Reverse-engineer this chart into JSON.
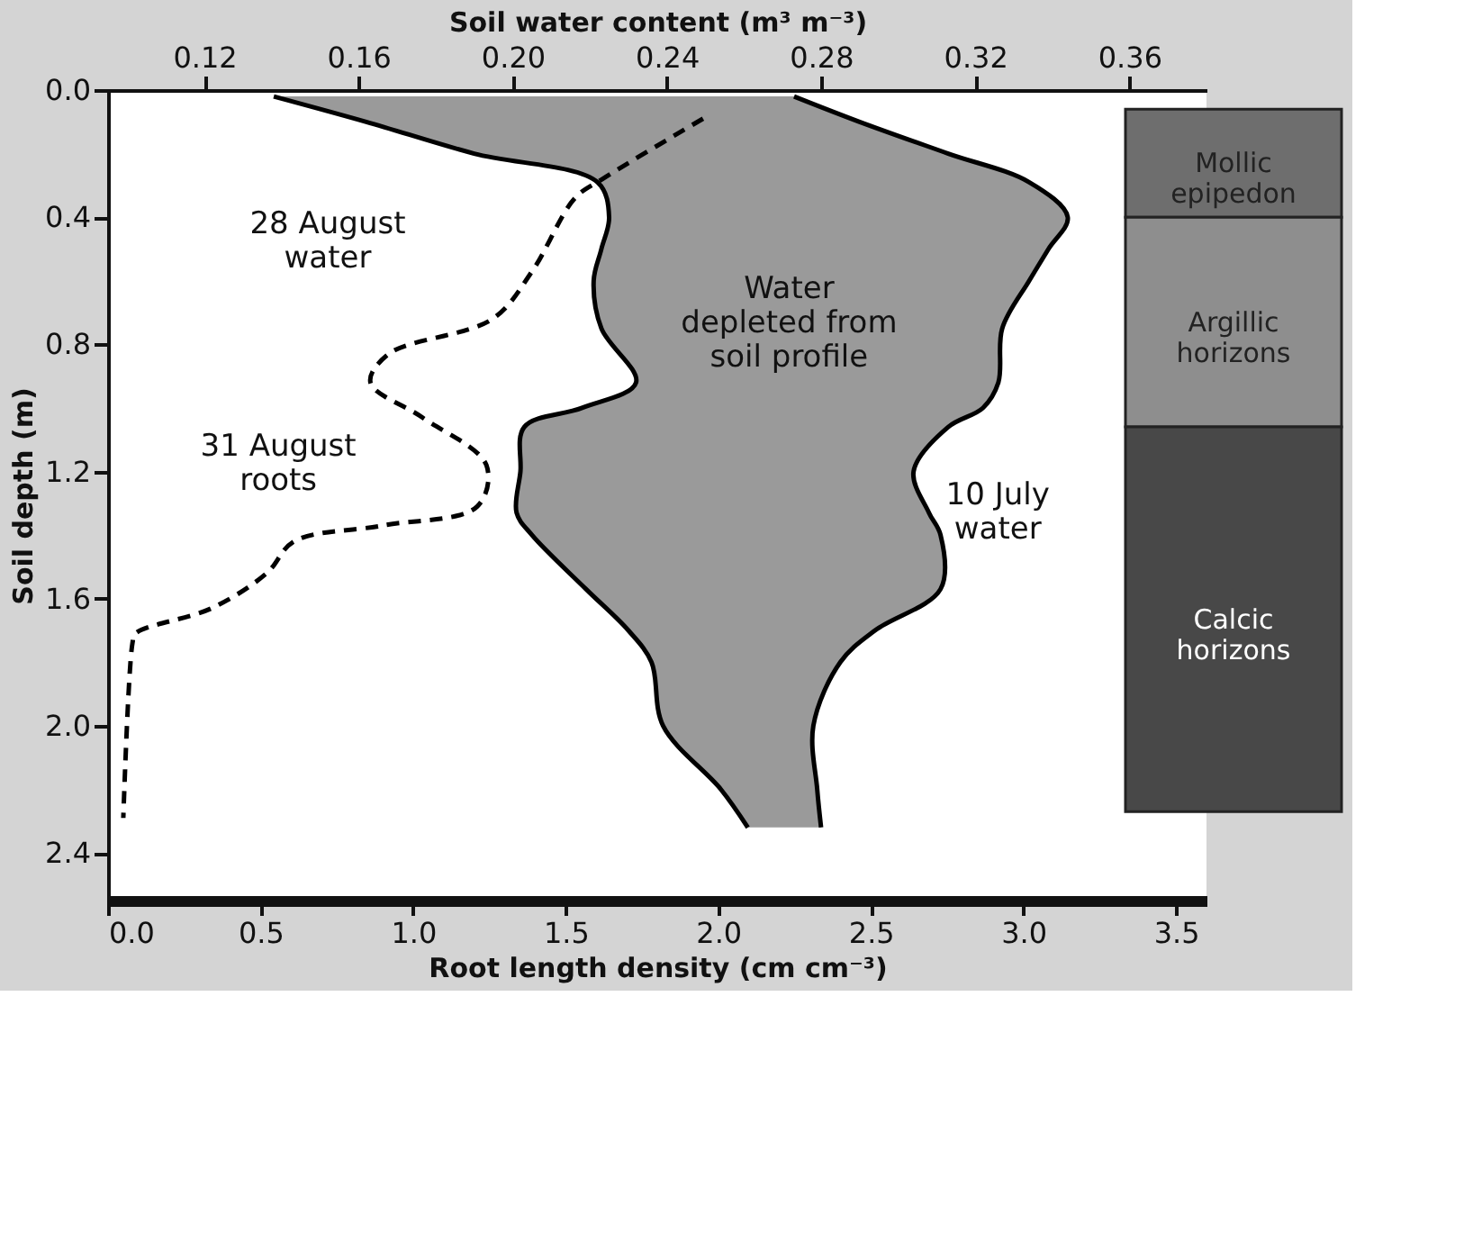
{
  "chart_data": {
    "type": "line",
    "orientation": "horizontal",
    "xlabel": "Root length density (cm cm⁻³)",
    "x2label": "Soil water content (m³ m⁻³)",
    "ylabel": "Soil depth (m)",
    "xlim": [
      0,
      3.6
    ],
    "xticks": [
      {
        "value": 0,
        "label": "0.0"
      },
      {
        "value": 0.5,
        "label": "0.5"
      },
      {
        "value": 1,
        "label": "1.0"
      },
      {
        "value": 1.5,
        "label": "1.5"
      },
      {
        "value": 2,
        "label": "2.0"
      },
      {
        "value": 2.5,
        "label": "2.5"
      },
      {
        "value": 3,
        "label": "3.0"
      },
      {
        "value": 3.5,
        "label": "3.5"
      }
    ],
    "x2lim": [
      0.095,
      0.38
    ],
    "x2ticks": [
      0.12,
      0.16,
      {
        "value": 0.2,
        "label": "0.20"
      },
      0.24,
      0.28,
      0.32,
      0.36
    ],
    "ylim": [
      2.55,
      0
    ],
    "yticks": [
      {
        "value": 0,
        "label": "0.0"
      },
      0.4,
      0.8,
      1.2,
      1.6,
      {
        "value": 2,
        "label": "2.0"
      },
      2.4
    ],
    "grid": false,
    "marker": "none",
    "series": [
      {
        "type": "line",
        "axis": "x2",
        "color": "#000000",
        "line_style": "solid",
        "x": [
          0.02,
          0.1,
          0.2,
          0.29,
          0.4,
          0.5,
          0.6,
          0.75,
          0.92,
          1.0,
          1.06,
          1.2,
          1.33,
          1.4,
          1.57,
          1.7,
          1.8,
          2.0,
          2.2,
          2.32
        ],
        "values": [
          0.138,
          0.162,
          0.19,
          0.222,
          0.225,
          0.223,
          0.221,
          0.223,
          0.232,
          0.218,
          0.203,
          0.202,
          0.201,
          0.205,
          0.219,
          0.23,
          0.236,
          0.239,
          0.254,
          0.261
        ]
      },
      {
        "type": "line",
        "axis": "x2",
        "color": "#000000",
        "line_style": "solid",
        "x": [
          0.02,
          0.1,
          0.2,
          0.29,
          0.4,
          0.5,
          0.6,
          0.75,
          0.92,
          1.0,
          1.06,
          1.2,
          1.33,
          1.4,
          1.57,
          1.7,
          1.8,
          2.0,
          2.2,
          2.32
        ],
        "values": [
          0.273,
          0.29,
          0.313,
          0.334,
          0.344,
          0.339,
          0.334,
          0.327,
          0.326,
          0.322,
          0.313,
          0.304,
          0.308,
          0.311,
          0.311,
          0.294,
          0.285,
          0.278,
          0.279,
          0.28
        ],
        "lower": [
          0.138,
          0.162,
          0.19,
          0.222,
          0.225,
          0.223,
          0.221,
          0.223,
          0.232,
          0.218,
          0.203,
          0.202,
          0.201,
          0.205,
          0.219,
          0.23,
          0.236,
          0.239,
          0.254,
          0.261
        ],
        "upper": [
          0.273,
          0.29,
          0.313,
          0.334,
          0.344,
          0.339,
          0.334,
          0.327,
          0.326,
          0.322,
          0.313,
          0.304,
          0.308,
          0.311,
          0.311,
          0.294,
          0.285,
          0.278,
          0.279,
          0.28
        ]
      },
      {
        "type": "line",
        "color": "#000000",
        "line_style": "dashed",
        "x": [
          0.09,
          0.28,
          0.34,
          0.57,
          0.72,
          0.83,
          0.92,
          1.03,
          1.18,
          1.31,
          1.37,
          1.42,
          1.52,
          1.63,
          1.71,
          1.74,
          2.29
        ],
        "values": [
          1.95,
          1.62,
          1.53,
          1.39,
          1.26,
          0.92,
          0.86,
          1.03,
          1.24,
          1.21,
          0.9,
          0.61,
          0.52,
          0.34,
          0.09,
          0.08,
          0.05
        ]
      }
    ],
    "bands": [
      {
        "axis": "y",
        "from": 0.06,
        "to": 0.4,
        "label": "Mollic\nepipedon",
        "color": "#6e6e6e"
      },
      {
        "axis": "y",
        "from": 0.4,
        "to": 1.06,
        "label": "Argillic\nhorizons",
        "color": "#8e8e8e"
      },
      {
        "axis": "y",
        "from": 1.06,
        "to": 2.27,
        "label": "Calcic\nhorizons",
        "color": "#484848"
      }
    ],
    "annotations": [
      "28 August\nwater",
      "31 August\nroots",
      "10 July\nwater",
      "Water\ndepleted from\nsoil profile"
    ]
  }
}
